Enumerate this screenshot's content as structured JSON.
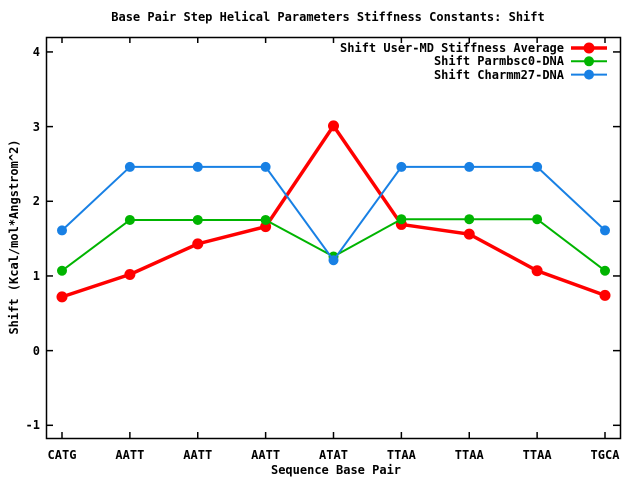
{
  "chart_data": {
    "type": "line",
    "title": "Base Pair Step Helical Parameters Stiffness Constants: Shift",
    "xlabel": "Sequence Base Pair",
    "ylabel": "Shift (Kcal/mol*Angstrom^2)",
    "categories": [
      "CATG",
      "AATT",
      "AATT",
      "AATT",
      "ATAT",
      "TTAA",
      "TTAA",
      "TTAA",
      "TGCA"
    ],
    "series": [
      {
        "name": "Shift User-MD Stiffness Average",
        "color": "#ff0000",
        "line_width": 3.5,
        "marker": "filled-circle",
        "marker_radius": 5.5,
        "values": [
          0.72,
          1.02,
          1.43,
          1.66,
          3.01,
          1.69,
          1.56,
          1.07,
          0.74
        ]
      },
      {
        "name": "Shift Parmbsc0-DNA",
        "color": "#00b400",
        "line_width": 2,
        "marker": "filled-circle",
        "marker_radius": 5,
        "values": [
          1.07,
          1.75,
          1.75,
          1.75,
          1.26,
          1.76,
          1.76,
          1.76,
          1.07
        ]
      },
      {
        "name": "Shift Charmm27-DNA",
        "color": "#1880e4",
        "line_width": 2,
        "marker": "filled-circle",
        "marker_radius": 5,
        "values": [
          1.61,
          2.46,
          2.46,
          2.46,
          1.21,
          2.46,
          2.46,
          2.46,
          1.61
        ]
      }
    ],
    "yticks": [
      -1,
      0,
      1,
      2,
      3,
      4
    ],
    "ylim": [
      -1.17,
      4.2
    ],
    "grid": false,
    "legend_position": "top-right-inside",
    "border_color": "#000000",
    "background": "#ffffff",
    "text_color": "#000000"
  }
}
